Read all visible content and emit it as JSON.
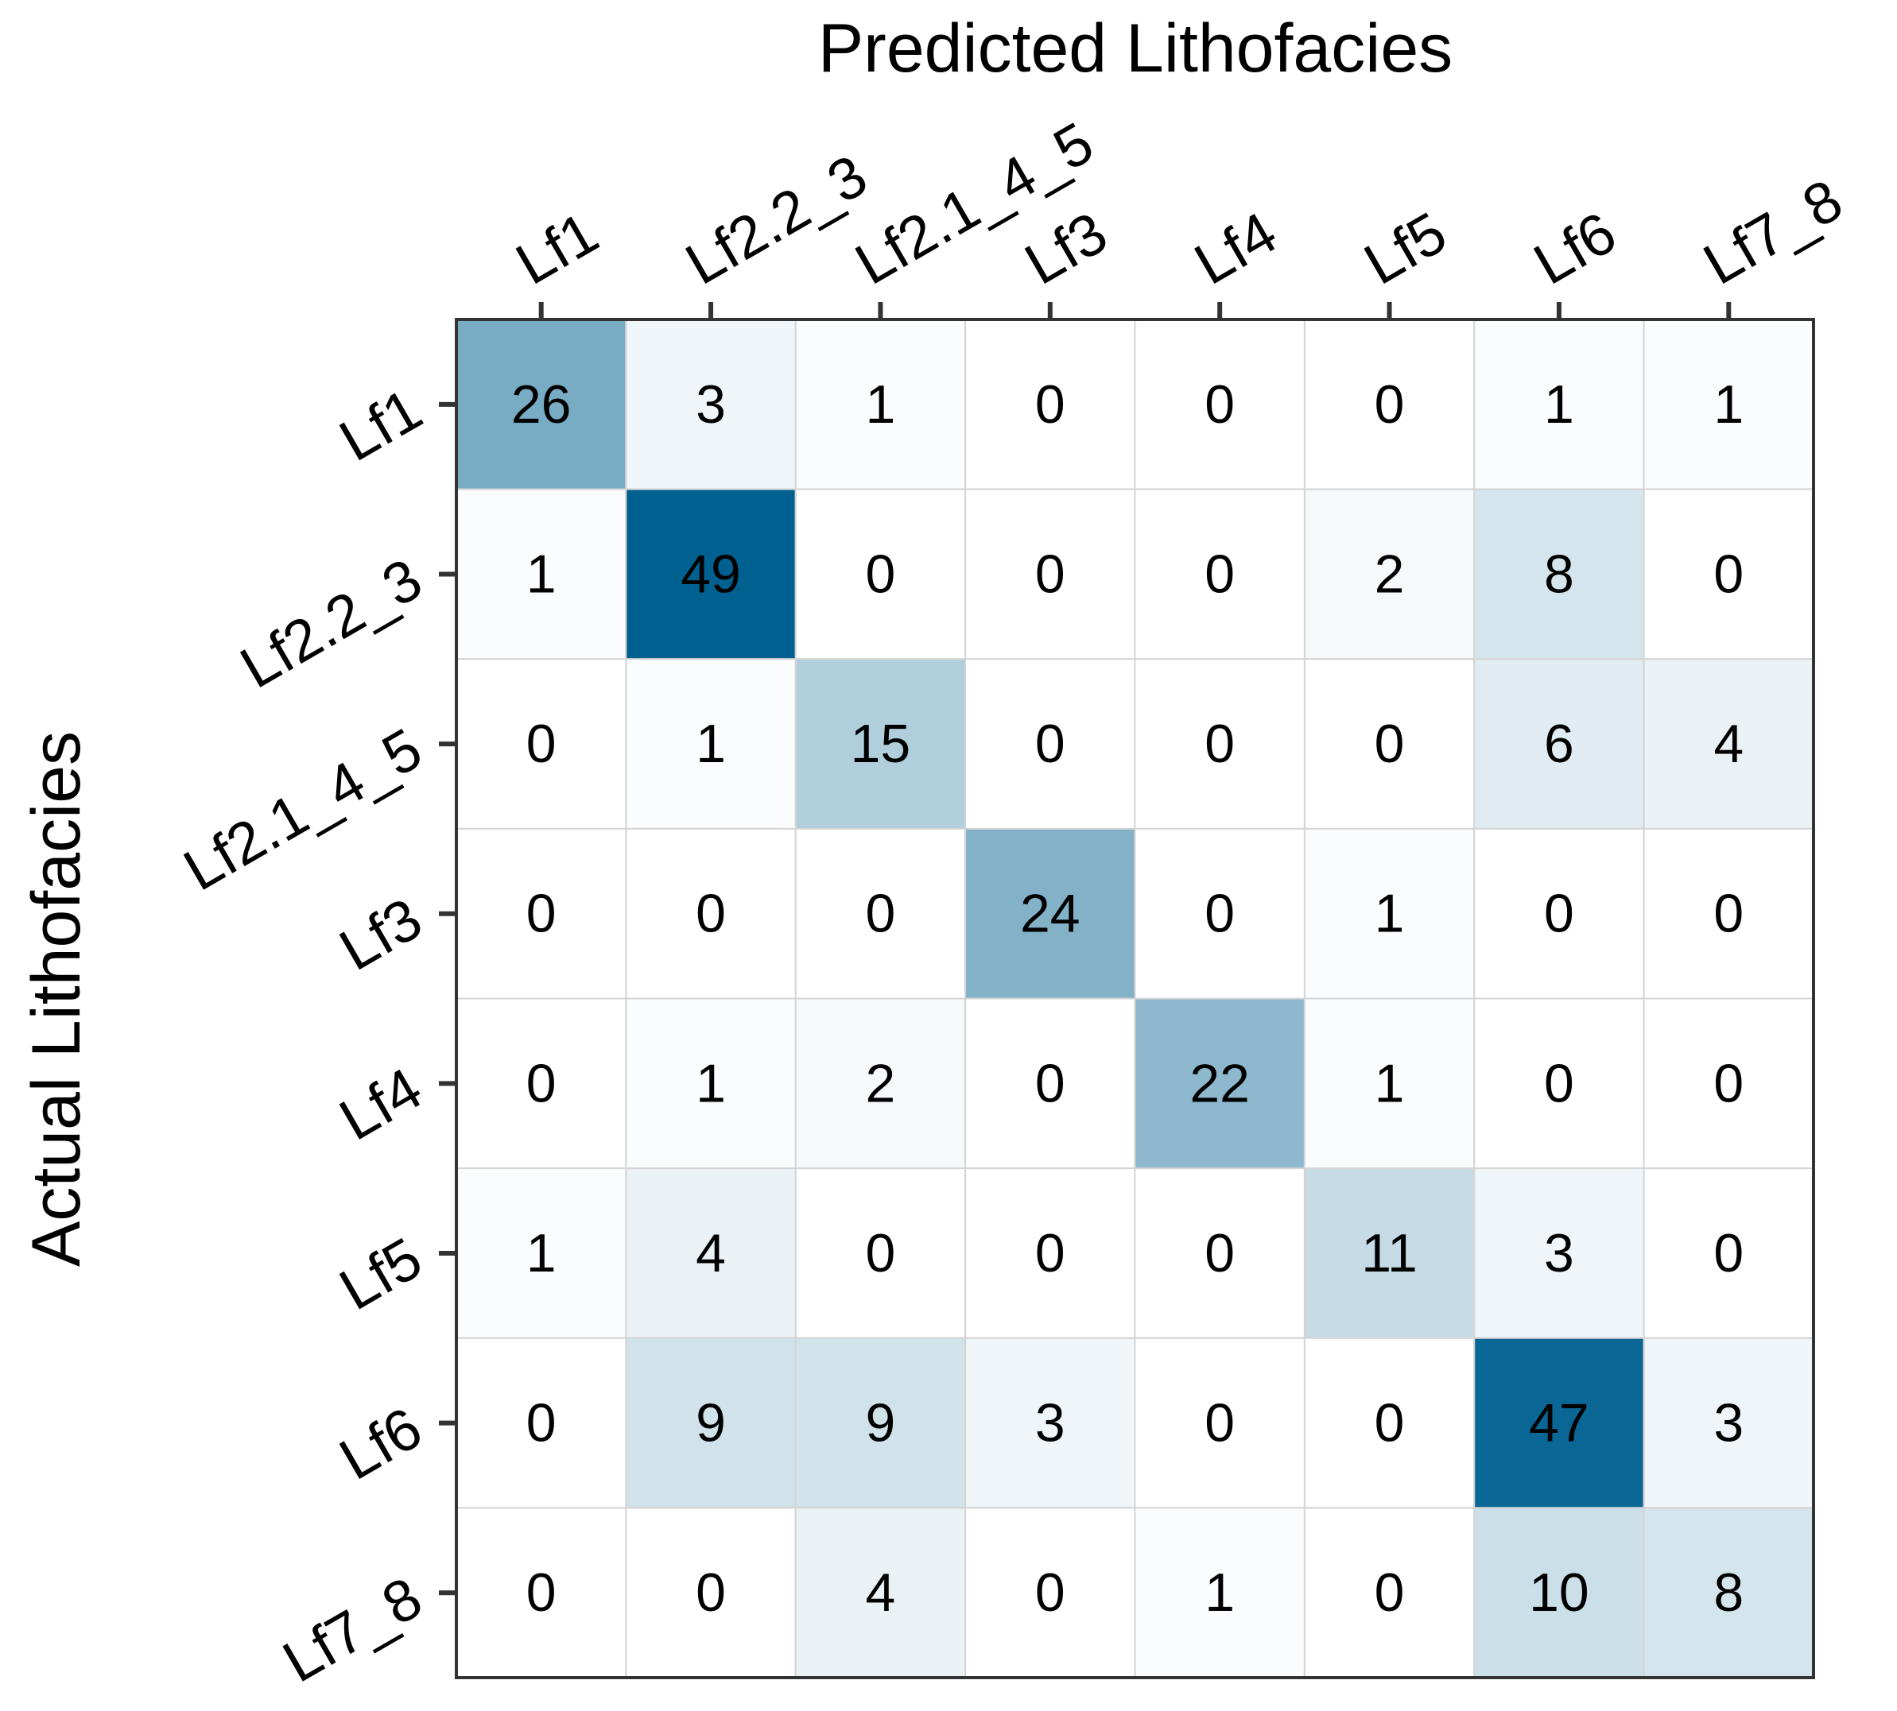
{
  "chart_data": {
    "type": "heatmap",
    "title": "Predicted Lithofacies",
    "y_label": "Actual Lithofacies",
    "x_categories": [
      "Lf1",
      "Lf2.2_3",
      "Lf2.1_4_5",
      "Lf3",
      "Lf4",
      "Lf5",
      "Lf6",
      "Lf7_8"
    ],
    "y_categories": [
      "Lf1",
      "Lf2.2_3",
      "Lf2.1_4_5",
      "Lf3",
      "Lf4",
      "Lf5",
      "Lf6",
      "Lf7_8"
    ],
    "values": [
      [
        26,
        3,
        1,
        0,
        0,
        0,
        1,
        1
      ],
      [
        1,
        49,
        0,
        0,
        0,
        2,
        8,
        0
      ],
      [
        0,
        1,
        15,
        0,
        0,
        0,
        6,
        4
      ],
      [
        0,
        0,
        0,
        24,
        0,
        1,
        0,
        0
      ],
      [
        0,
        1,
        2,
        0,
        22,
        1,
        0,
        0
      ],
      [
        1,
        4,
        0,
        0,
        0,
        11,
        3,
        0
      ],
      [
        0,
        9,
        9,
        3,
        0,
        0,
        47,
        3
      ],
      [
        0,
        0,
        4,
        0,
        1,
        0,
        10,
        8
      ]
    ],
    "colorscale": [
      "#ffffff",
      "#00608f"
    ]
  }
}
